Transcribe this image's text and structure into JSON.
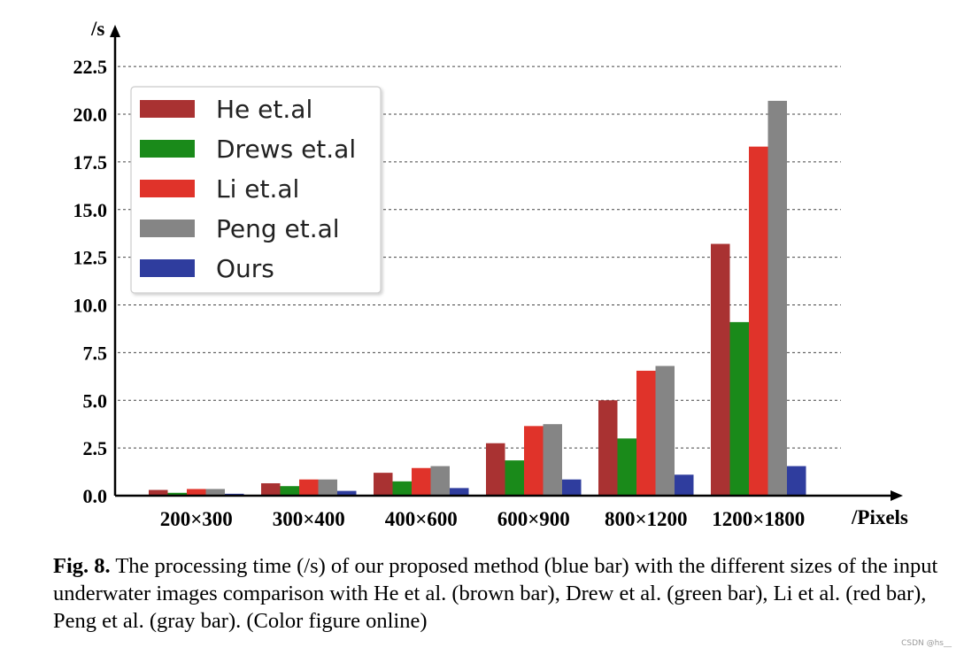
{
  "chart_data": {
    "type": "bar",
    "categories": [
      "200×300",
      "300×400",
      "400×600",
      "600×900",
      "800×1200",
      "1200×1800"
    ],
    "series": [
      {
        "name": "He et.al",
        "color": "#a93232",
        "values": [
          0.3,
          0.65,
          1.2,
          2.75,
          5.0,
          13.2
        ]
      },
      {
        "name": "Drews et.al",
        "color": "#1a8a1a",
        "values": [
          0.15,
          0.5,
          0.75,
          1.85,
          3.0,
          9.1
        ]
      },
      {
        "name": "Li et.al",
        "color": "#e0332a",
        "values": [
          0.35,
          0.85,
          1.45,
          3.65,
          6.55,
          18.3
        ]
      },
      {
        "name": "Peng et.al",
        "color": "#858585",
        "values": [
          0.35,
          0.85,
          1.55,
          3.75,
          6.8,
          20.7
        ]
      },
      {
        "name": "Ours",
        "color": "#2f3d9e",
        "values": [
          0.1,
          0.25,
          0.4,
          0.85,
          1.1,
          1.55
        ]
      }
    ],
    "yticks": [
      "0.0",
      "2.5",
      "5.0",
      "7.5",
      "10.0",
      "12.5",
      "15.0",
      "17.5",
      "20.0",
      "22.5"
    ],
    "ylim": [
      0,
      23.5
    ],
    "ylabel": "/s",
    "xlabel": "/Pixels",
    "grid": "horizontal dashed",
    "legend_position": "top-left"
  },
  "caption": {
    "label": "Fig. 8.",
    "text": "The processing time (/s) of our proposed method (blue bar) with the different sizes of the input underwater images comparison with He et al. (brown bar), Drew et al. (green bar), Li et al. (red bar), Peng et al. (gray bar). (Color figure online)"
  },
  "watermark": "CSDN @hs__"
}
